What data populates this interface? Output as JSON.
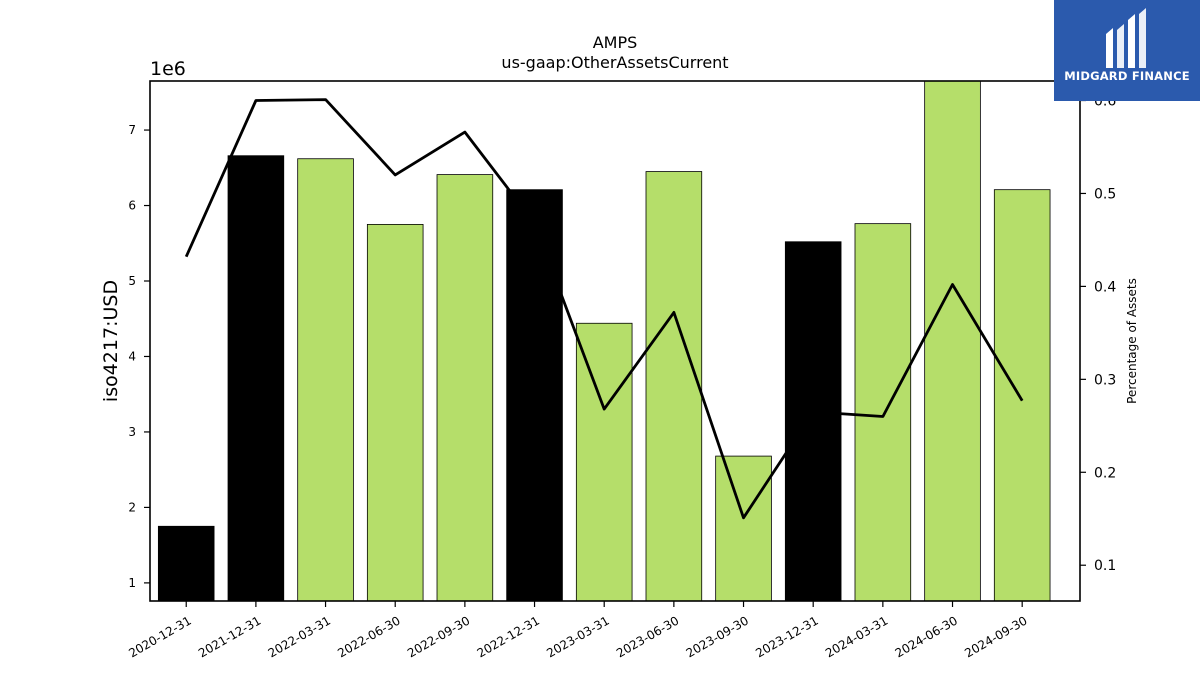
{
  "chart_data": {
    "type": "bar",
    "title": "AMPS",
    "subtitle": "us-gaap:OtherAssetsCurrent",
    "ylabel": "iso4217:USD",
    "y_offset_label": "1e6",
    "y2label": "Percentage of Assets",
    "categories": [
      "2020-12-31",
      "2021-12-31",
      "2022-03-31",
      "2022-06-30",
      "2022-09-30",
      "2022-12-31",
      "2023-03-31",
      "2023-06-30",
      "2023-09-30",
      "2023-12-31",
      "2024-03-31",
      "2024-06-30",
      "2024-09-30"
    ],
    "series": [
      {
        "type": "bar",
        "axis": "left",
        "values": [
          1750000,
          6660000,
          6620000,
          5750000,
          6410000,
          6210000,
          4440000,
          6450000,
          2680000,
          5520000,
          5760000,
          7650000,
          6210000
        ],
        "bar_colors": [
          "#000000",
          "#000000",
          "#b5de6a",
          "#b5de6a",
          "#b5de6a",
          "#000000",
          "#b5de6a",
          "#b5de6a",
          "#b5de6a",
          "#000000",
          "#b5de6a",
          "#b5de6a",
          "#b5de6a"
        ]
      },
      {
        "type": "line",
        "axis": "right",
        "values": [
          0.432,
          0.6,
          0.601,
          0.52,
          0.566,
          0.468,
          0.268,
          0.372,
          0.151,
          0.265,
          0.26,
          0.402,
          0.277
        ],
        "color": "#000000"
      }
    ],
    "ylim": [
      760000,
      7650000
    ],
    "y2lim": [
      0.0615,
      0.621
    ],
    "yticks": [
      1,
      2,
      3,
      4,
      5,
      6,
      7
    ],
    "y2ticks": [
      0.1,
      0.2,
      0.3,
      0.4,
      0.5,
      0.6
    ],
    "grid": false,
    "legend": "none"
  },
  "logo": {
    "text": "MIDGARD FINANCE"
  }
}
